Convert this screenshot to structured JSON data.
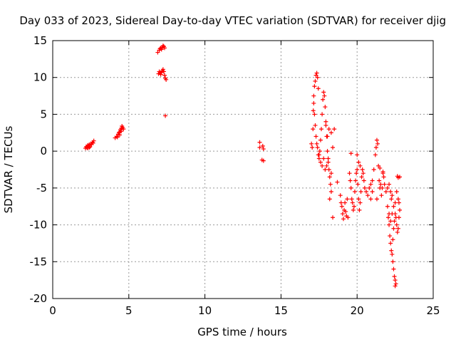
{
  "chart_data": {
    "type": "scatter",
    "title": "Day 033 of 2023, Sidereal Day-to-day VTEC variation (SDTVAR) for receiver djig",
    "xlabel": "GPS time / hours",
    "ylabel": "SDTVAR / TECUs",
    "xlim": [
      0,
      25
    ],
    "ylim": [
      -20,
      15
    ],
    "xticks": [
      0,
      5,
      10,
      15,
      20,
      25
    ],
    "yticks": [
      -20,
      -15,
      -10,
      -5,
      0,
      5,
      10,
      15
    ],
    "grid": true,
    "marker": "+",
    "color": "#ff0000",
    "series": [
      {
        "name": "SDTVAR",
        "points": [
          [
            2.15,
            0.4
          ],
          [
            2.2,
            0.6
          ],
          [
            2.25,
            0.5
          ],
          [
            2.3,
            0.8
          ],
          [
            2.35,
            0.7
          ],
          [
            2.4,
            0.9
          ],
          [
            2.45,
            0.6
          ],
          [
            2.5,
            1.0
          ],
          [
            2.55,
            0.9
          ],
          [
            2.6,
            1.2
          ],
          [
            2.65,
            1.1
          ],
          [
            2.7,
            1.4
          ],
          [
            2.3,
            0.4
          ],
          [
            2.4,
            0.5
          ],
          [
            4.1,
            1.8
          ],
          [
            4.2,
            2.0
          ],
          [
            4.25,
            1.9
          ],
          [
            4.3,
            2.3
          ],
          [
            4.35,
            2.5
          ],
          [
            4.4,
            2.6
          ],
          [
            4.45,
            2.9
          ],
          [
            4.5,
            3.1
          ],
          [
            4.55,
            3.4
          ],
          [
            4.6,
            3.2
          ],
          [
            4.65,
            3.0
          ],
          [
            4.5,
            2.7
          ],
          [
            4.4,
            2.2
          ],
          [
            6.9,
            13.4
          ],
          [
            7.0,
            13.7
          ],
          [
            7.05,
            13.9
          ],
          [
            7.1,
            14.0
          ],
          [
            7.15,
            13.8
          ],
          [
            7.2,
            14.1
          ],
          [
            7.25,
            14.3
          ],
          [
            7.3,
            14.2
          ],
          [
            7.35,
            14.0
          ],
          [
            6.95,
            10.5
          ],
          [
            7.0,
            10.8
          ],
          [
            7.05,
            10.6
          ],
          [
            7.1,
            10.4
          ],
          [
            7.15,
            10.7
          ],
          [
            7.2,
            10.9
          ],
          [
            7.25,
            11.1
          ],
          [
            7.3,
            10.8
          ],
          [
            7.35,
            10.3
          ],
          [
            7.4,
            9.9
          ],
          [
            7.45,
            9.7
          ],
          [
            7.4,
            4.8
          ],
          [
            13.6,
            1.2
          ],
          [
            13.6,
            0.5
          ],
          [
            13.8,
            0.7
          ],
          [
            13.85,
            0.3
          ],
          [
            13.75,
            -1.2
          ],
          [
            13.85,
            -1.3
          ],
          [
            17.0,
            1.0
          ],
          [
            17.05,
            0.5
          ],
          [
            17.1,
            3.0
          ],
          [
            17.12,
            5.5
          ],
          [
            17.15,
            7.5
          ],
          [
            17.2,
            8.8
          ],
          [
            17.25,
            9.5
          ],
          [
            17.3,
            10.3
          ],
          [
            17.35,
            10.6
          ],
          [
            17.4,
            10.0
          ],
          [
            17.45,
            8.5
          ],
          [
            17.15,
            6.5
          ],
          [
            17.2,
            5.0
          ],
          [
            17.25,
            3.5
          ],
          [
            17.3,
            2.0
          ],
          [
            17.35,
            1.0
          ],
          [
            17.4,
            0.5
          ],
          [
            17.45,
            -0.5
          ],
          [
            17.5,
            -1.0
          ],
          [
            17.55,
            0.0
          ],
          [
            17.6,
            1.5
          ],
          [
            17.65,
            3.0
          ],
          [
            17.7,
            5.0
          ],
          [
            17.75,
            7.0
          ],
          [
            17.8,
            8.0
          ],
          [
            17.85,
            7.5
          ],
          [
            17.9,
            6.0
          ],
          [
            17.95,
            4.0
          ],
          [
            18.0,
            2.0
          ],
          [
            18.05,
            0.0
          ],
          [
            18.1,
            -1.5
          ],
          [
            18.15,
            -2.5
          ],
          [
            18.2,
            -3.5
          ],
          [
            18.25,
            -4.5
          ],
          [
            18.3,
            -3.0
          ],
          [
            18.0,
            -2.0
          ],
          [
            17.8,
            -1.0
          ],
          [
            17.6,
            -1.5
          ],
          [
            17.5,
            -0.5
          ],
          [
            17.7,
            -2.0
          ],
          [
            17.9,
            -2.5
          ],
          [
            18.1,
            -1.0
          ],
          [
            18.05,
            2.0
          ],
          [
            17.95,
            3.5
          ],
          [
            18.15,
            3.0
          ],
          [
            18.3,
            2.5
          ],
          [
            18.4,
            0.5
          ],
          [
            18.5,
            3.0
          ],
          [
            18.3,
            -5.5
          ],
          [
            18.2,
            -6.5
          ],
          [
            18.4,
            -9.0
          ],
          [
            18.7,
            -4.2
          ],
          [
            18.9,
            -6.0
          ],
          [
            18.95,
            -7.0
          ],
          [
            19.0,
            -7.5
          ],
          [
            19.05,
            -8.5
          ],
          [
            19.1,
            -9.2
          ],
          [
            19.15,
            -8.0
          ],
          [
            19.2,
            -7.0
          ],
          [
            19.25,
            -8.2
          ],
          [
            19.3,
            -8.8
          ],
          [
            19.4,
            -9.0
          ],
          [
            19.35,
            -6.5
          ],
          [
            19.5,
            -3.0
          ],
          [
            19.55,
            -4.0
          ],
          [
            19.6,
            -5.0
          ],
          [
            19.65,
            -6.5
          ],
          [
            19.7,
            -7.0
          ],
          [
            19.75,
            -8.0
          ],
          [
            19.8,
            -7.5
          ],
          [
            19.85,
            -5.5
          ],
          [
            19.9,
            -4.0
          ],
          [
            19.95,
            -3.0
          ],
          [
            20.0,
            -2.5
          ],
          [
            20.05,
            -4.5
          ],
          [
            20.1,
            -6.5
          ],
          [
            20.15,
            -8.0
          ],
          [
            20.2,
            -7.0
          ],
          [
            20.25,
            -5.5
          ],
          [
            20.3,
            -3.5
          ],
          [
            20.35,
            -2.5
          ],
          [
            20.4,
            -3.0
          ],
          [
            20.45,
            -4.0
          ],
          [
            20.5,
            -5.0
          ],
          [
            19.6,
            -0.3
          ],
          [
            20.0,
            -0.5
          ],
          [
            20.1,
            -1.5
          ],
          [
            20.2,
            -2.0
          ],
          [
            20.6,
            -5.5
          ],
          [
            20.7,
            -6.0
          ],
          [
            20.8,
            -5.0
          ],
          [
            20.9,
            -4.5
          ],
          [
            21.0,
            -4.0
          ],
          [
            21.1,
            -2.5
          ],
          [
            21.2,
            -0.5
          ],
          [
            21.25,
            0.5
          ],
          [
            21.3,
            1.5
          ],
          [
            21.35,
            1.0
          ],
          [
            21.4,
            -2.0
          ],
          [
            21.45,
            -4.0
          ],
          [
            21.5,
            -5.0
          ],
          [
            21.55,
            -4.5
          ],
          [
            21.6,
            -6.0
          ],
          [
            21.65,
            -5.0
          ],
          [
            21.7,
            -3.0
          ],
          [
            21.75,
            -3.5
          ],
          [
            21.8,
            -4.5
          ],
          [
            21.9,
            -5.5
          ],
          [
            22.0,
            -5.0
          ],
          [
            22.1,
            -4.5
          ],
          [
            22.2,
            -5.5
          ],
          [
            22.3,
            -6.0
          ],
          [
            21.3,
            -6.5
          ],
          [
            21.0,
            -5.5
          ],
          [
            20.9,
            -6.5
          ],
          [
            22.0,
            -7.5
          ],
          [
            22.05,
            -9.0
          ],
          [
            22.1,
            -10.0
          ],
          [
            22.15,
            -11.5
          ],
          [
            22.2,
            -12.5
          ],
          [
            22.25,
            -13.5
          ],
          [
            22.3,
            -14.0
          ],
          [
            22.35,
            -15.0
          ],
          [
            22.4,
            -16.0
          ],
          [
            22.45,
            -17.0
          ],
          [
            22.5,
            -17.5
          ],
          [
            22.55,
            -18.0
          ],
          [
            22.5,
            -18.3
          ],
          [
            22.35,
            -12.0
          ],
          [
            22.4,
            -10.5
          ],
          [
            22.45,
            -9.5
          ],
          [
            22.5,
            -8.5
          ],
          [
            22.55,
            -9.0
          ],
          [
            22.6,
            -10.0
          ],
          [
            22.65,
            -11.0
          ],
          [
            22.7,
            -10.5
          ],
          [
            22.75,
            -9.0
          ],
          [
            22.8,
            -8.0
          ],
          [
            22.75,
            -7.0
          ],
          [
            22.7,
            -6.5
          ],
          [
            22.6,
            -5.5
          ],
          [
            22.5,
            -7.0
          ],
          [
            22.4,
            -7.5
          ],
          [
            22.3,
            -8.5
          ],
          [
            22.2,
            -9.5
          ],
          [
            22.1,
            -8.5
          ],
          [
            22.25,
            -6.5
          ],
          [
            22.65,
            -3.4
          ],
          [
            22.7,
            -3.6
          ],
          [
            22.8,
            -3.5
          ],
          [
            21.7,
            -2.8
          ],
          [
            21.5,
            -2.3
          ]
        ]
      }
    ]
  }
}
